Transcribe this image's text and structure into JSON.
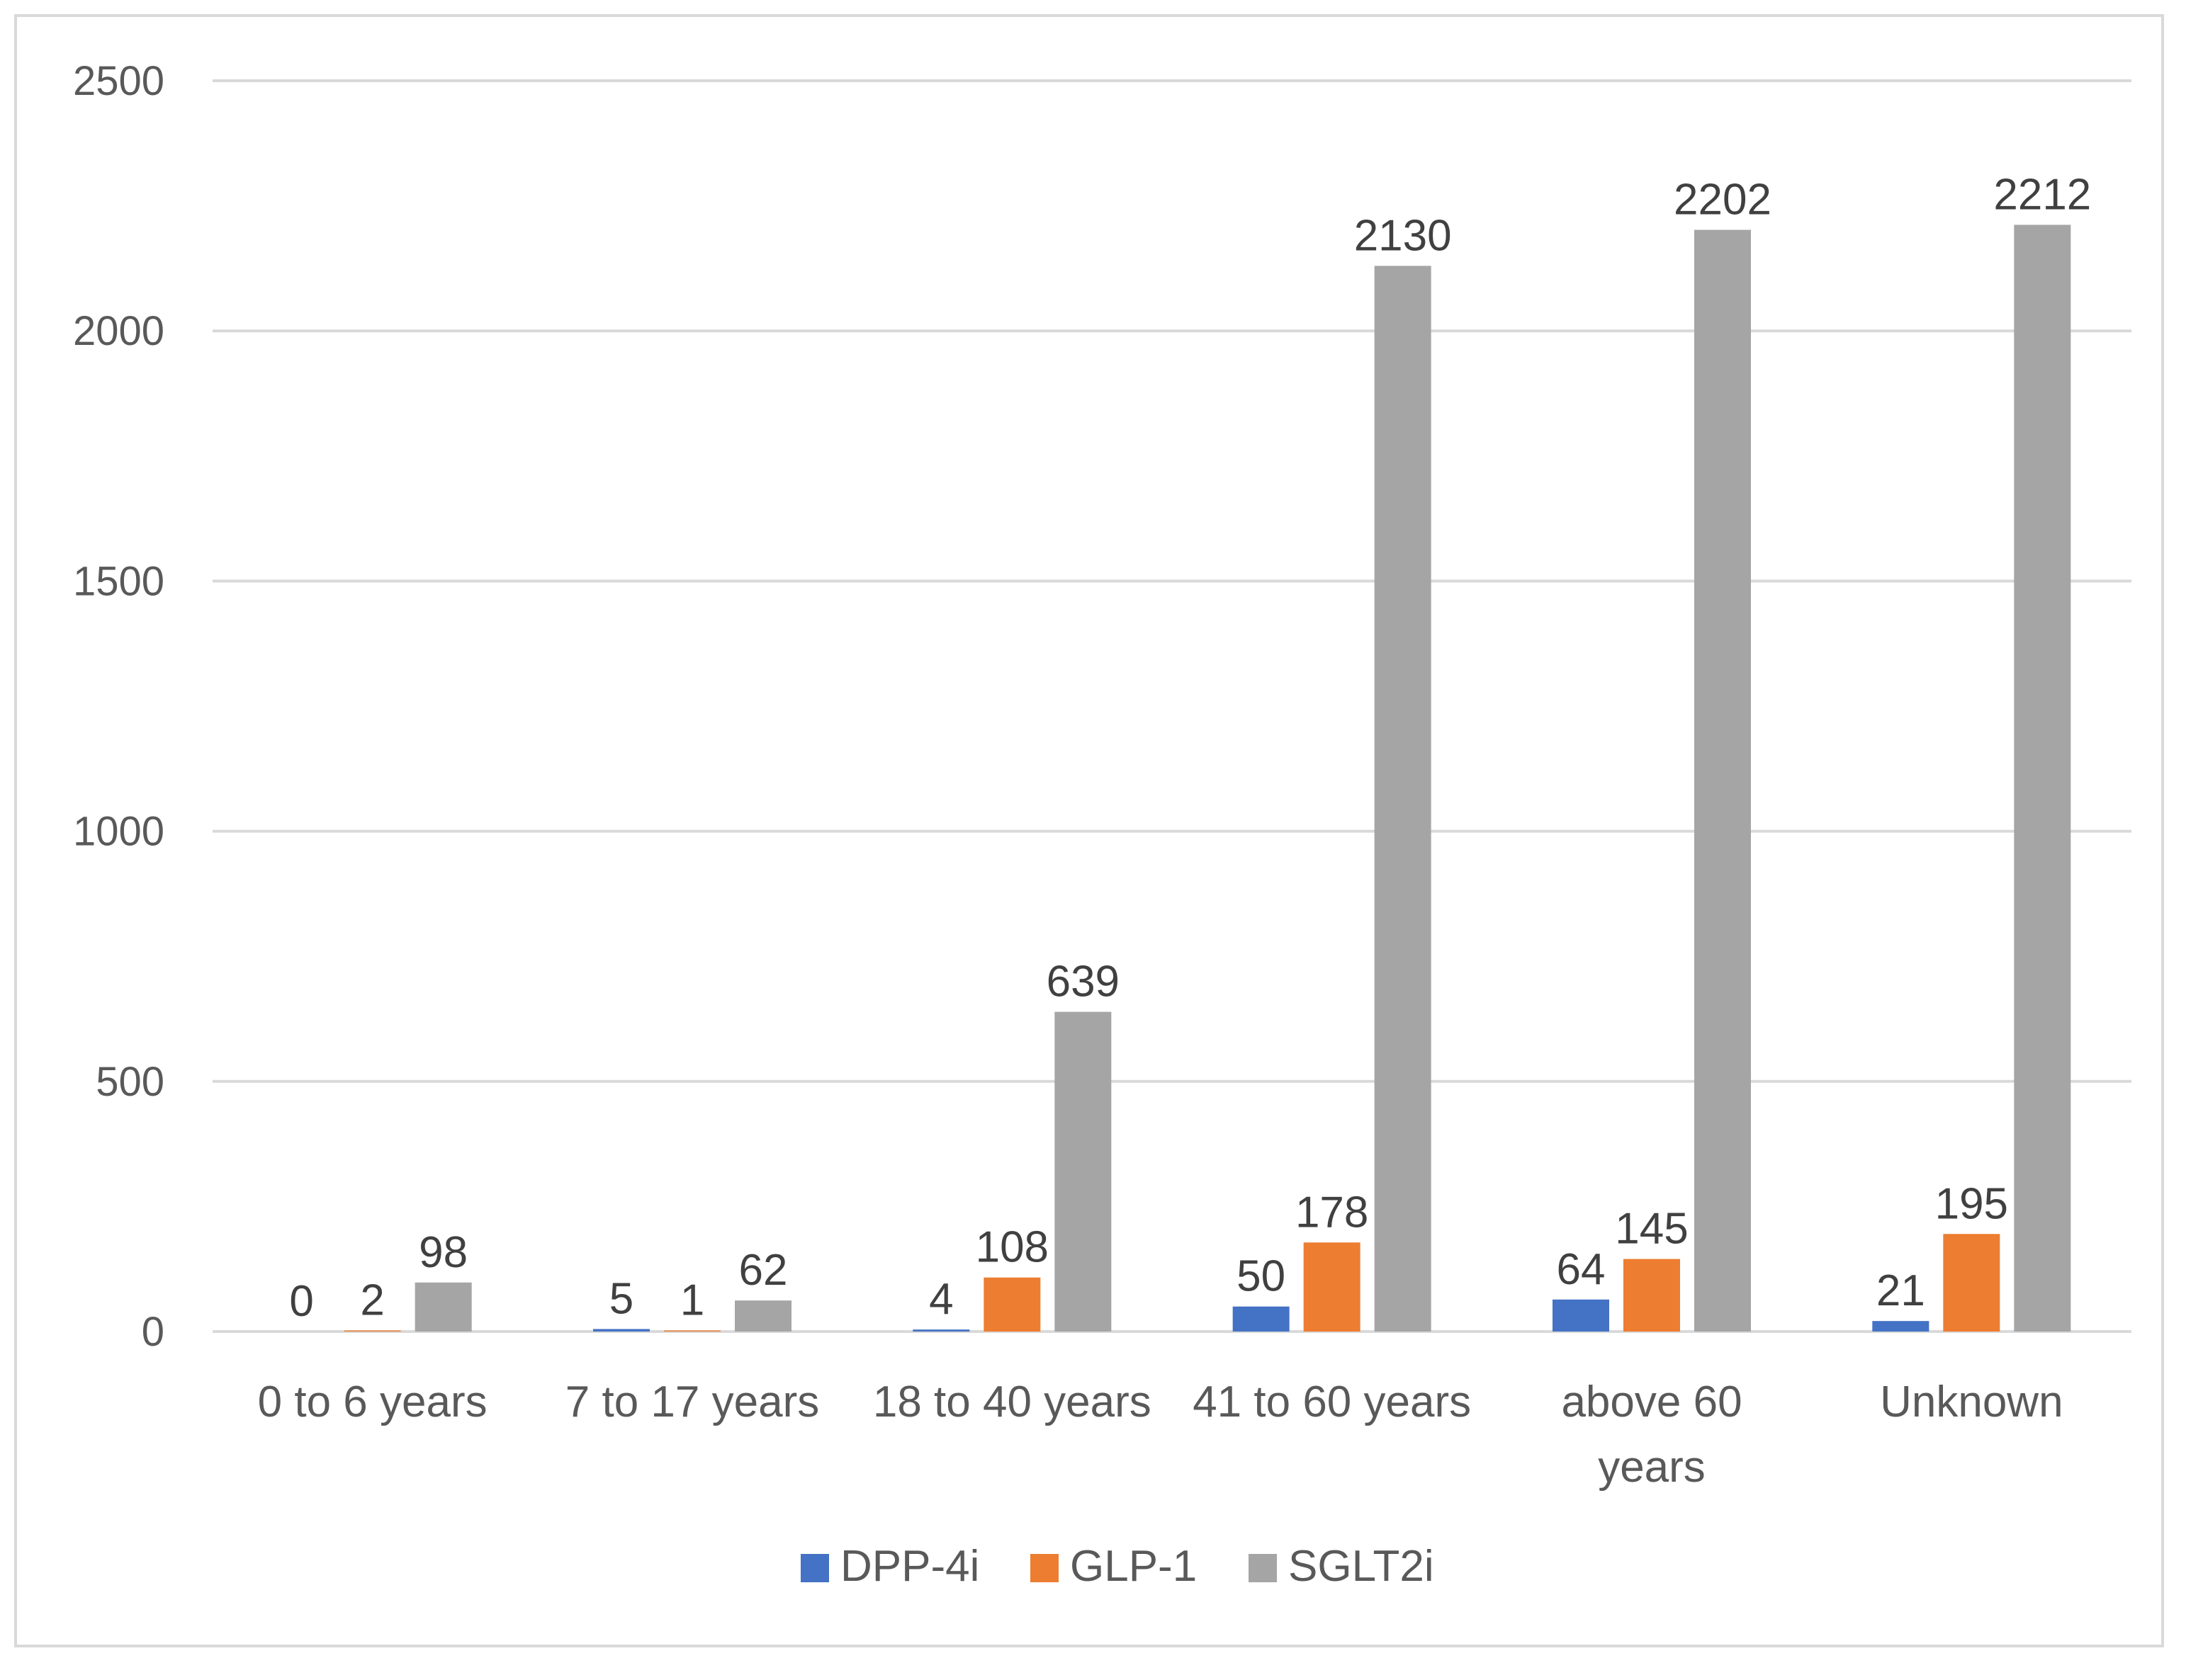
{
  "chart_data": {
    "type": "bar",
    "title": "",
    "xlabel": "",
    "ylabel": "",
    "ylim": [
      0,
      2500
    ],
    "yticks": [
      0,
      500,
      1000,
      1500,
      2000,
      2500
    ],
    "grid": true,
    "legend_position": "bottom-center",
    "categories": [
      [
        "0 to 6 years"
      ],
      [
        "7 to 17 years"
      ],
      [
        "18 to 40 years"
      ],
      [
        "41 to 60 years"
      ],
      [
        "above 60",
        "years"
      ],
      [
        "Unknown"
      ]
    ],
    "series": [
      {
        "name": "DPP-4i",
        "color": "#4472c4",
        "values": [
          0,
          5,
          4,
          50,
          64,
          21
        ]
      },
      {
        "name": "GLP-1",
        "color": "#ed7d31",
        "values": [
          2,
          1,
          108,
          178,
          145,
          195
        ]
      },
      {
        "name": "SGLT2i",
        "color": "#a5a5a5",
        "values": [
          98,
          62,
          639,
          2130,
          2202,
          2212
        ]
      }
    ],
    "colors": {
      "gridline": "#d9d9d9",
      "axis_text": "#595959",
      "data_label": "#404040",
      "frame": "#d9d9d9"
    }
  }
}
